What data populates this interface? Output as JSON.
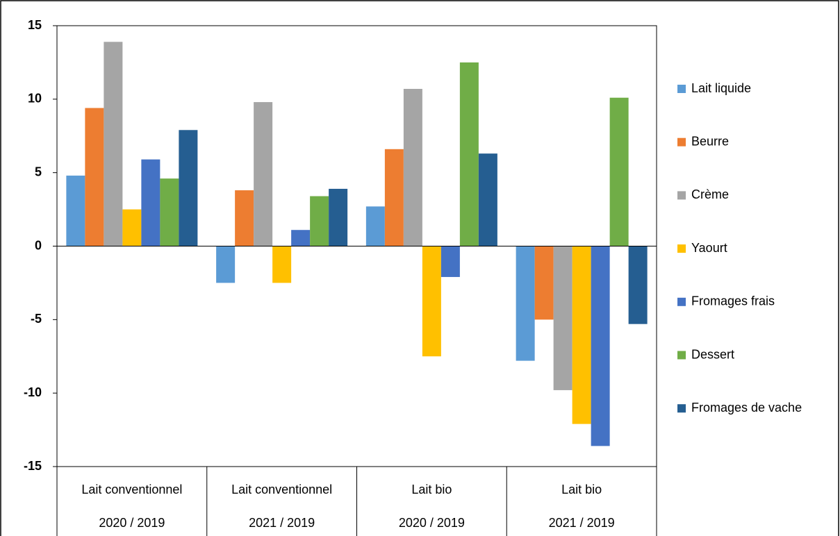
{
  "chart_data": {
    "type": "bar",
    "categories": [
      [
        "Lait conventionnel",
        "2020 / 2019"
      ],
      [
        "Lait conventionnel",
        "2021 / 2019"
      ],
      [
        "Lait bio",
        "2020 / 2019"
      ],
      [
        "Lait bio",
        "2021 / 2019"
      ]
    ],
    "series": [
      {
        "name": "Lait liquide",
        "color": "#5b9bd5",
        "values": [
          4.8,
          -2.5,
          2.7,
          -7.8
        ]
      },
      {
        "name": "Beurre",
        "color": "#ed7d31",
        "values": [
          9.4,
          3.8,
          6.6,
          -5.0
        ]
      },
      {
        "name": "Crème",
        "color": "#a5a5a5",
        "values": [
          13.9,
          9.8,
          10.7,
          -9.8
        ]
      },
      {
        "name": "Yaourt",
        "color": "#ffc000",
        "values": [
          2.5,
          -2.5,
          -7.5,
          -12.1
        ]
      },
      {
        "name": "Fromages frais",
        "color": "#4472c4",
        "values": [
          5.9,
          1.1,
          -2.1,
          -13.6
        ]
      },
      {
        "name": "Dessert",
        "color": "#70ad47",
        "values": [
          4.6,
          3.4,
          12.5,
          10.1
        ]
      },
      {
        "name": "Fromages de vache",
        "color": "#255e91",
        "values": [
          7.9,
          3.9,
          6.3,
          -5.3
        ]
      }
    ],
    "ylim": [
      -15,
      15
    ],
    "yticks": [
      -15,
      -10,
      -5,
      0,
      5,
      10,
      15
    ],
    "grid": false,
    "legend": "right"
  }
}
